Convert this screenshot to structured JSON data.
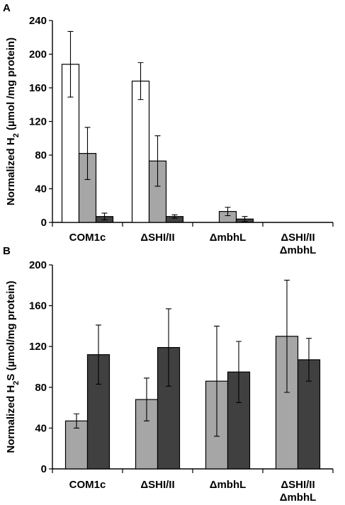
{
  "colors": {
    "white_series": "#ffffff",
    "light_gray_series": "#a6a6a6",
    "dark_gray_series": "#404040",
    "axis": "#000000"
  },
  "chart_data": [
    {
      "panel": "A",
      "type": "bar",
      "title": "",
      "ylabel": "Normalized H",
      "ylabel_subscript": "2",
      "ylabel_suffix": " (µmol /mg protein)",
      "ylim": [
        0,
        240
      ],
      "yticks": [
        0,
        40,
        80,
        120,
        160,
        200,
        240
      ],
      "grid": false,
      "legend": "none",
      "categories": [
        [
          "COM1c"
        ],
        [
          "ΔSHI/II"
        ],
        [
          "ΔmbhL"
        ],
        [
          "ΔSHI/II",
          "ΔmbhL"
        ]
      ],
      "series": [
        {
          "color": "#ffffff",
          "values": [
            188,
            168,
            0,
            0
          ],
          "errors": [
            39,
            22,
            0,
            0
          ]
        },
        {
          "color": "#a6a6a6",
          "values": [
            82,
            73,
            13,
            0
          ],
          "errors": [
            31,
            30,
            5,
            0
          ]
        },
        {
          "color": "#404040",
          "values": [
            7,
            7,
            4,
            0
          ],
          "errors": [
            4,
            2,
            3,
            0
          ]
        }
      ]
    },
    {
      "panel": "B",
      "type": "bar",
      "title": "",
      "ylabel": "Normalized H",
      "ylabel_subscript": "2",
      "ylabel_suffix": "S (µmol/mg protein)",
      "ylim": [
        0,
        200
      ],
      "yticks": [
        0,
        40,
        80,
        120,
        160,
        200
      ],
      "grid": false,
      "legend": "none",
      "categories": [
        [
          "COM1c"
        ],
        [
          "ΔSHI/II"
        ],
        [
          "ΔmbhL"
        ],
        [
          "ΔSHI/II",
          "ΔmbhL"
        ]
      ],
      "series": [
        {
          "color": "#a6a6a6",
          "values": [
            47,
            68,
            86,
            130
          ],
          "errors": [
            7,
            21,
            54,
            55
          ]
        },
        {
          "color": "#404040",
          "values": [
            112,
            119,
            95,
            107
          ],
          "errors": [
            29,
            38,
            30,
            21
          ]
        }
      ]
    }
  ]
}
